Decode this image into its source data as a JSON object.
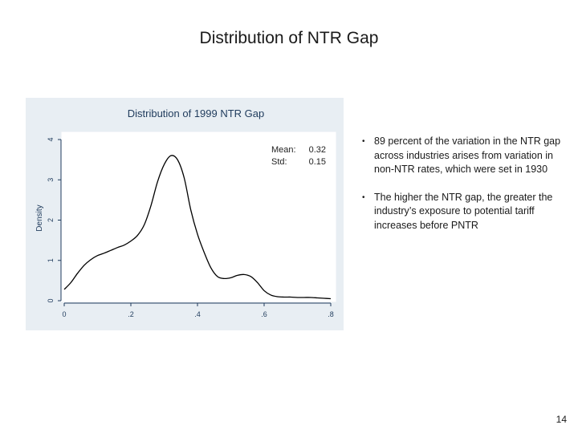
{
  "slide": {
    "title": "Distribution of NTR Gap",
    "page_number": "14"
  },
  "stats": {
    "mean_label": "Mean:",
    "mean_value": "0.32",
    "std_label": "Std:",
    "std_value": "0.15"
  },
  "bullets": [
    {
      "marker": "•",
      "text": "89 percent of the variation in the NTR gap across industries arises from variation in non-NTR rates, which were set in 1930"
    },
    {
      "marker": "•",
      "text": "The higher the NTR gap, the greater the industry’s exposure to potential tariff increases before PNTR"
    }
  ],
  "colors": {
    "plot_background": "#ffffff",
    "panel_background": "#e8eef3",
    "line": "#000000",
    "title_text": "#1f3b5c"
  },
  "chart_data": {
    "type": "line",
    "title": "Distribution of 1999 NTR Gap",
    "xlabel": "",
    "ylabel": "Density",
    "xlim": [
      0,
      0.8
    ],
    "ylim": [
      0,
      4
    ],
    "xticks": [
      0,
      0.2,
      0.4,
      0.6,
      0.8
    ],
    "xtick_labels": [
      "0",
      ".2",
      ".4",
      ".6",
      ".8"
    ],
    "yticks": [
      0,
      1,
      2,
      3,
      4
    ],
    "ytick_labels": [
      "0",
      "1",
      "2",
      "3",
      "4"
    ],
    "grid": false,
    "series": [
      {
        "name": "Density",
        "x": [
          0.0,
          0.02,
          0.04,
          0.06,
          0.08,
          0.1,
          0.12,
          0.14,
          0.16,
          0.18,
          0.2,
          0.22,
          0.24,
          0.26,
          0.28,
          0.3,
          0.32,
          0.34,
          0.36,
          0.38,
          0.4,
          0.42,
          0.44,
          0.46,
          0.48,
          0.5,
          0.52,
          0.54,
          0.56,
          0.58,
          0.6,
          0.62,
          0.64,
          0.66,
          0.68,
          0.7,
          0.72,
          0.74,
          0.76,
          0.78,
          0.8
        ],
        "values": [
          0.28,
          0.45,
          0.68,
          0.88,
          1.02,
          1.12,
          1.18,
          1.25,
          1.32,
          1.38,
          1.48,
          1.62,
          1.88,
          2.35,
          2.95,
          3.38,
          3.6,
          3.5,
          3.05,
          2.25,
          1.65,
          1.2,
          0.82,
          0.6,
          0.55,
          0.57,
          0.63,
          0.65,
          0.6,
          0.45,
          0.25,
          0.14,
          0.1,
          0.09,
          0.09,
          0.08,
          0.08,
          0.08,
          0.07,
          0.06,
          0.05
        ]
      }
    ]
  }
}
